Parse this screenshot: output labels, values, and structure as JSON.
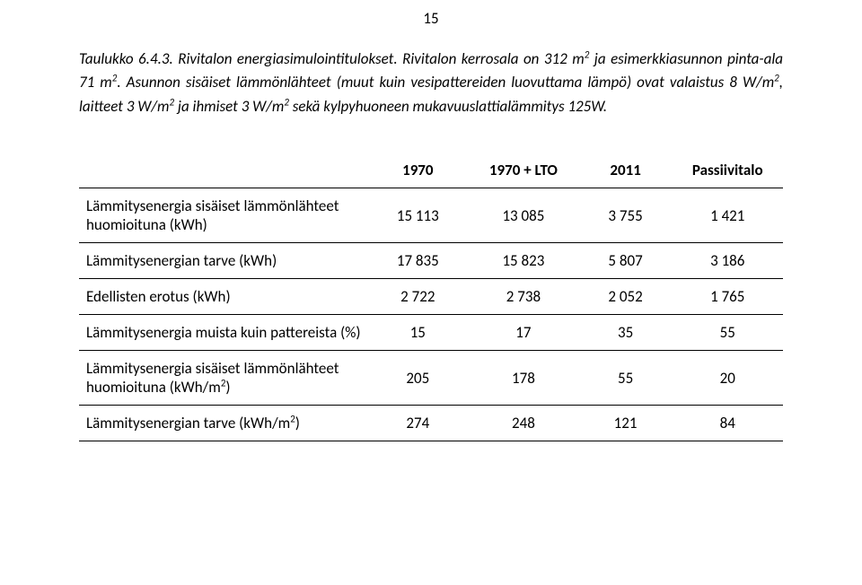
{
  "page_number": "15",
  "caption": {
    "lead": "Taulukko 6.4.3.   Rivitalon   energiasimulointitulokset.   Rivitalon   kerrosala   on   312   m",
    "sup1": "2",
    "after_sup1": "   ja esimerkkiasunnon  pinta-ala  71  m",
    "sup2": "2",
    "after_sup2": ".  Asunnon  sisäiset  lämmönlähteet  (muut  kuin  vesipattereiden luovuttama  lämpö)  ovat  valaistus  8  W/m",
    "sup3": "2",
    "after_sup3": ",  laitteet  3  W/m",
    "sup4": "2",
    "after_sup4": "  ja  ihmiset  3  W/m",
    "sup5": "2",
    "after_sup5": "  sekä  kylpyhuoneen mukavuuslattialämmitys 125W."
  },
  "table": {
    "headers": [
      "1970",
      "1970 + LTO",
      "2011",
      "Passiivitalo"
    ],
    "rows": [
      {
        "label_html": "Lämmitysenergia sisäiset lämmönlähteet huomioituna (kWh)",
        "cells": [
          "15 113",
          "13 085",
          "3 755",
          "1 421"
        ]
      },
      {
        "label_html": "Lämmitysenergian tarve  (kWh)",
        "cells": [
          "17 835",
          "15 823",
          "5 807",
          "3 186"
        ]
      },
      {
        "label_html": "Edellisten erotus (kWh)",
        "cells": [
          "2 722",
          "2 738",
          "2 052",
          "1 765"
        ]
      },
      {
        "label_html": "Lämmitysenergia muista kuin pattereista (%)",
        "cells": [
          "15",
          "17",
          "35",
          "55"
        ]
      },
      {
        "label_html": "Lämmitysenergia sisäiset lämmönlähteet huomioituna (kWh/m<sup class=\"sm\">2</sup>)",
        "cells": [
          "205",
          "178",
          "55",
          "20"
        ]
      },
      {
        "label_html": "Lämmitysenergian tarve (kWh/m<sup class=\"sm\">2</sup>)",
        "cells": [
          "274",
          "248",
          "121",
          "84"
        ]
      }
    ]
  }
}
